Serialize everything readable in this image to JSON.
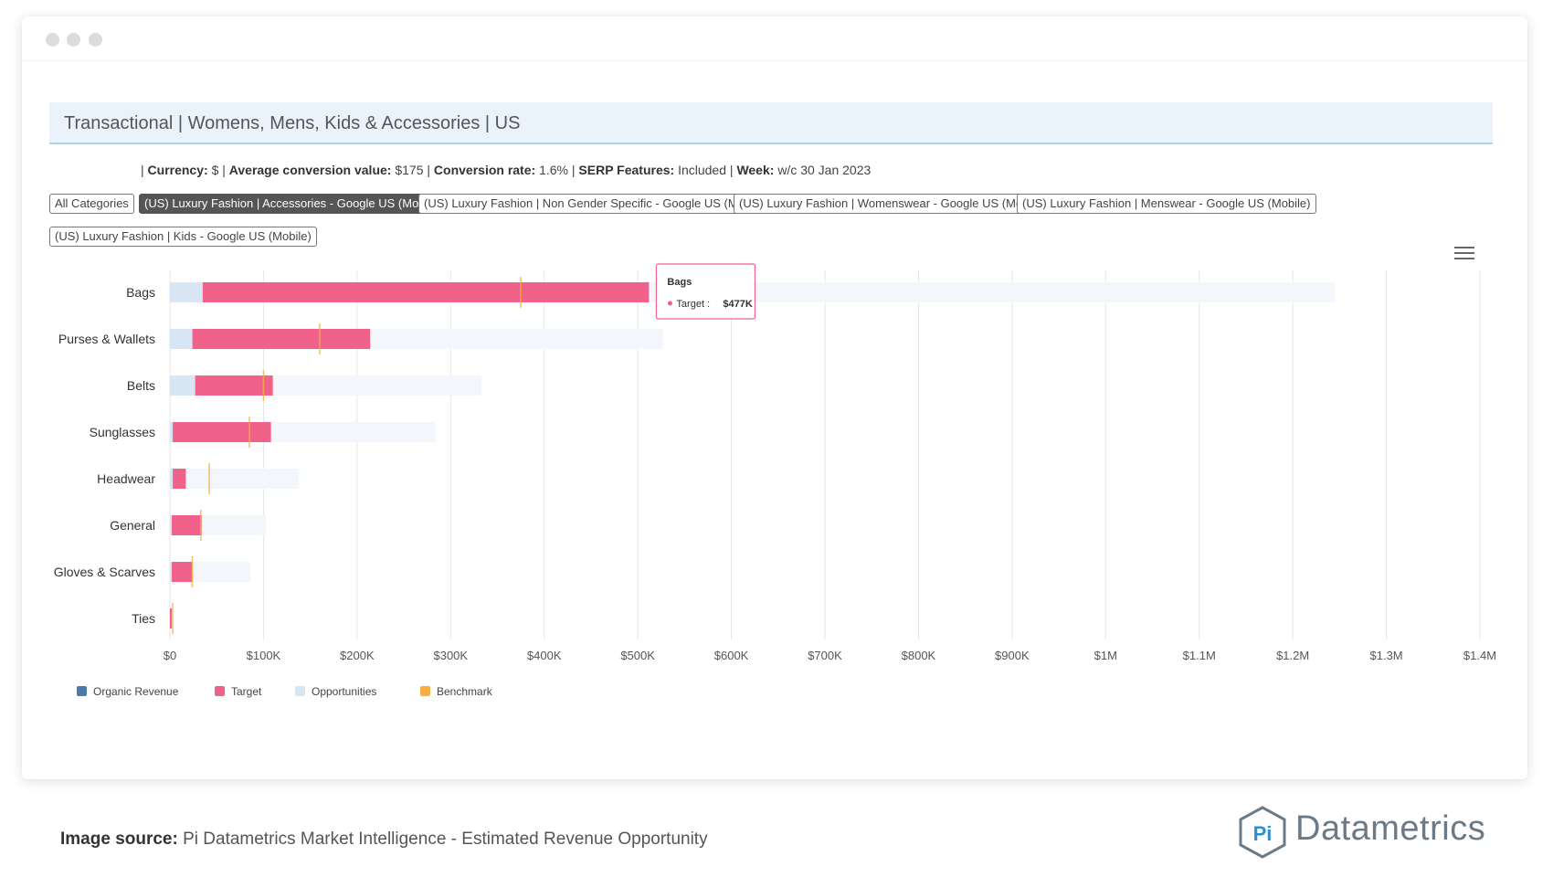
{
  "window": {
    "controls": [
      "close",
      "minimize",
      "maximize"
    ]
  },
  "banner": {
    "title": "Transactional | Womens, Mens, Kids & Accessories | US"
  },
  "meta": [
    {
      "label": "Currency:",
      "value": "$"
    },
    {
      "label": "Average conversion value:",
      "value": "$175"
    },
    {
      "label": "Conversion rate:",
      "value": "1.6%"
    },
    {
      "label": "SERP Features:",
      "value": "Included"
    },
    {
      "label": "Week:",
      "value": "w/c 30 Jan 2023"
    }
  ],
  "filters": [
    {
      "label": "All Categories",
      "active": false
    },
    {
      "label": "(US) Luxury Fashion | Accessories - Google US (Mobile)",
      "active": true
    },
    {
      "label": "(US) Luxury Fashion | Non Gender Specific - Google US (Mobile)",
      "active": false
    },
    {
      "label": "(US) Luxury Fashion | Womenswear - Google US (Mobile)",
      "active": false
    },
    {
      "label": "(US) Luxury Fashion | Menswear - Google US (Mobile)",
      "active": false
    },
    {
      "label": "(US) Luxury Fashion | Kids - Google US (Mobile)",
      "active": false
    }
  ],
  "chart_data": {
    "type": "bar",
    "orientation": "horizontal",
    "stacked": true,
    "title": "",
    "xlabel": "",
    "ylabel": "",
    "xlim": [
      0,
      1400000
    ],
    "x_ticks": [
      0,
      100000,
      200000,
      300000,
      400000,
      500000,
      600000,
      700000,
      800000,
      900000,
      1000000,
      1100000,
      1200000,
      1300000,
      1400000
    ],
    "x_tick_labels": [
      "$0",
      "$100K",
      "$200K",
      "$300K",
      "$400K",
      "$500K",
      "$600K",
      "$700K",
      "$800K",
      "$900K",
      "$1M",
      "$1.1M",
      "$1.2M",
      "$1.3M",
      "$1.4M"
    ],
    "grid": true,
    "legend_position": "bottom-left",
    "categories": [
      "Bags",
      "Purses & Wallets",
      "Belts",
      "Sunglasses",
      "Headwear",
      "General",
      "Gloves & Scarves",
      "Ties"
    ],
    "series": [
      {
        "name": "Organic Revenue",
        "color": "#4f7aa6",
        "values": [
          0,
          0,
          0,
          0,
          0,
          0,
          0,
          0
        ]
      },
      {
        "name": "Target",
        "color": "#f0628a",
        "values": [
          477000,
          190000,
          83000,
          105000,
          14000,
          32000,
          22000,
          2000
        ]
      },
      {
        "name": "Opportunities",
        "color": "#d8e6f3",
        "values": [
          35000,
          24000,
          27000,
          3000,
          3000,
          2000,
          2000,
          0
        ]
      },
      {
        "name": "Benchmark",
        "color": "#f5b041",
        "values": [
          375000,
          160000,
          100000,
          85000,
          42000,
          33000,
          24000,
          3000
        ]
      }
    ],
    "total_opportunity": [
      1245000,
      527000,
      333000,
      284000,
      138000,
      103000,
      86000,
      3000
    ],
    "tooltip": {
      "category": "Bags",
      "series": "Target",
      "value_label": "$477K"
    }
  },
  "footer": {
    "source_label": "Image source:",
    "source_text": "Pi Datametrics Market Intelligence - Estimated Revenue Opportunity",
    "logo_mark": "Pi",
    "logo_text": "Datametrics"
  }
}
